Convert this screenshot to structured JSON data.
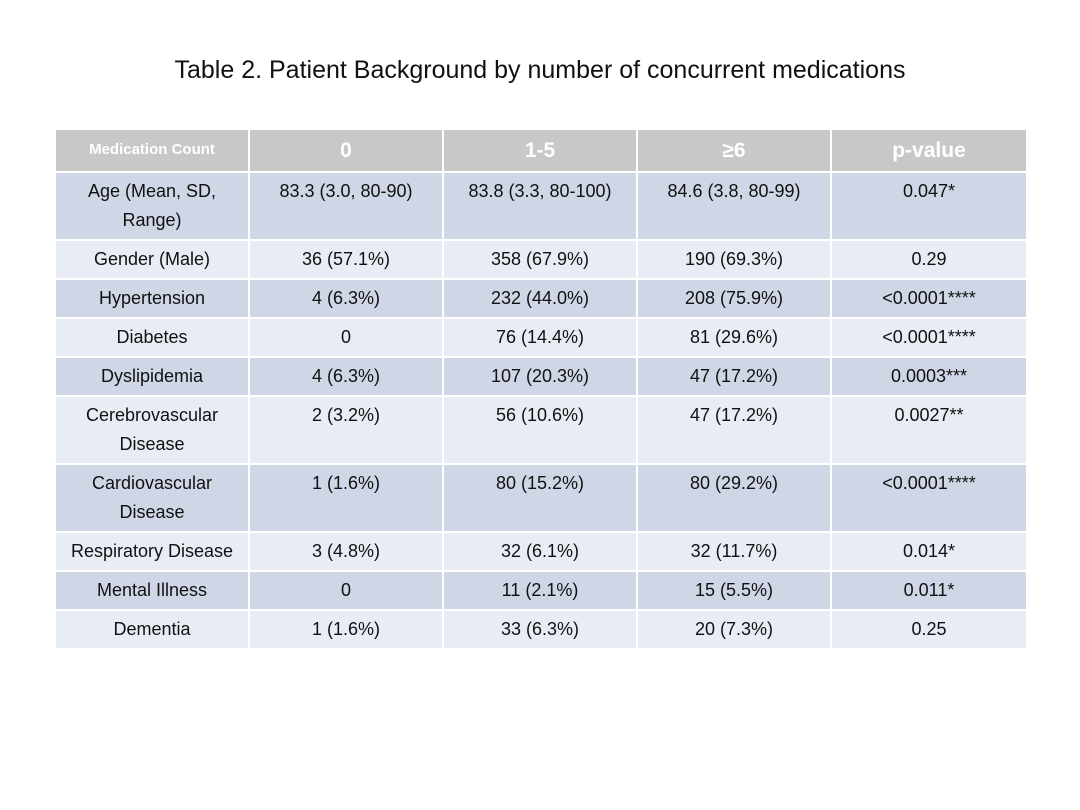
{
  "title": "Table 2. Patient Background by number of concurrent medications",
  "table": {
    "headers": [
      "Medication Count",
      "0",
      "1-5",
      "≥6",
      "p-value"
    ],
    "rows": [
      [
        "Age (Mean, SD, Range)",
        "83.3 (3.0, 80-90)",
        "83.8 (3.3, 80-100)",
        "84.6 (3.8, 80-99)",
        "0.047*"
      ],
      [
        "Gender (Male)",
        "36 (57.1%)",
        "358 (67.9%)",
        "190 (69.3%)",
        "0.29"
      ],
      [
        "Hypertension",
        "4 (6.3%)",
        "232 (44.0%)",
        "208 (75.9%)",
        "<0.0001****"
      ],
      [
        "Diabetes",
        "0",
        "76 (14.4%)",
        "81 (29.6%)",
        "<0.0001****"
      ],
      [
        "Dyslipidemia",
        "4 (6.3%)",
        "107 (20.3%)",
        "47 (17.2%)",
        "0.0003***"
      ],
      [
        "Cerebrovascular Disease",
        "2 (3.2%)",
        "56 (10.6%)",
        "47 (17.2%)",
        "0.0027**"
      ],
      [
        "Cardiovascular Disease",
        "1 (1.6%)",
        "80 (15.2%)",
        "80 (29.2%)",
        "<0.0001****"
      ],
      [
        "Respiratory Disease",
        "3 (4.8%)",
        "32 (6.1%)",
        "32 (11.7%)",
        "0.014*"
      ],
      [
        "Mental Illness",
        "0",
        "11 (2.1%)",
        "15 (5.5%)",
        "0.011*"
      ],
      [
        "Dementia",
        "1 (1.6%)",
        "33 (6.3%)",
        "20 (7.3%)",
        "0.25"
      ]
    ]
  },
  "colors": {
    "header_bg": "#c8c8c8",
    "header_text": "#ffffff",
    "row_odd_bg": "#cfd6e6",
    "row_even_bg": "#e8ecf4"
  }
}
